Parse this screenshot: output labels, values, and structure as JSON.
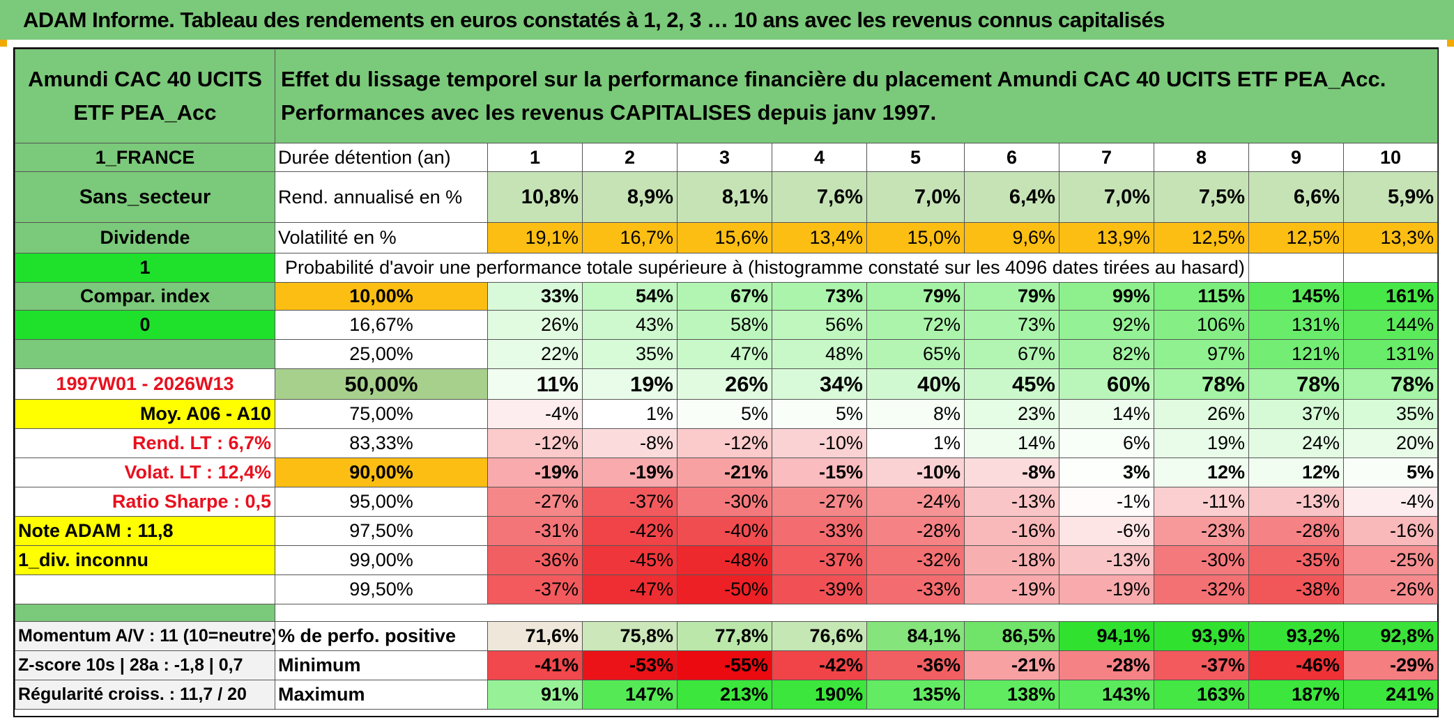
{
  "banner": {
    "title": "ADAM Informe. Tableau des rendements en euros constatés à 1, 2, 3 … 10 ans avec les revenus connus capitalisés"
  },
  "fund": {
    "name": "Amundi CAC 40 UCITS ETF PEA_Acc"
  },
  "header": {
    "description": "Effet du lissage temporel sur la performance financière du placement Amundi CAC 40 UCITS ETF PEA_Acc. Performances avec les revenus CAPITALISES depuis janv 1997."
  },
  "left": {
    "country": "1_FRANCE",
    "sector": "Sans_secteur",
    "dividend": "Dividende",
    "one": "1",
    "compar": "Compar. index",
    "zero": "0",
    "period": "1997W01 - 2026W13",
    "moy": "Moy. A06 - A10",
    "rend_lt": "Rend. LT :   6,7%",
    "volat_lt": "Volat. LT :   12,4%",
    "sharpe": "Ratio Sharpe :   0,5",
    "note": "Note ADAM : 11,8",
    "div": "1_div. inconnu",
    "momentum": "Momentum A/V : 11 (10=neutre)",
    "zscore": "Z-score 10s | 28a : -1,8 | 0,7",
    "regularite": "Régularité croiss. : 11,7 / 20"
  },
  "rows": {
    "duree_label": "Durée détention (an)",
    "years": [
      "1",
      "2",
      "3",
      "4",
      "5",
      "6",
      "7",
      "8",
      "9",
      "10"
    ],
    "rend_label": "Rend. annualisé en %",
    "rend": [
      "10,8%",
      "8,9%",
      "8,1%",
      "7,6%",
      "7,0%",
      "6,4%",
      "7,0%",
      "7,5%",
      "6,6%",
      "5,9%"
    ],
    "vol_label": "Volatilité en %",
    "vol": [
      "19,1%",
      "16,7%",
      "15,6%",
      "13,4%",
      "15,0%",
      "9,6%",
      "13,9%",
      "12,5%",
      "12,5%",
      "13,3%"
    ],
    "proba_label": "Probabilité d'avoir une performance totale supérieure à (histogramme constaté sur les 4096 dates tirées au hasard)",
    "pct": [
      {
        "p": "10,00%",
        "v": [
          "33%",
          "54%",
          "67%",
          "73%",
          "79%",
          "79%",
          "99%",
          "115%",
          "145%",
          "161%"
        ]
      },
      {
        "p": "16,67%",
        "v": [
          "26%",
          "43%",
          "58%",
          "56%",
          "72%",
          "73%",
          "92%",
          "106%",
          "131%",
          "144%"
        ]
      },
      {
        "p": "25,00%",
        "v": [
          "22%",
          "35%",
          "47%",
          "48%",
          "65%",
          "67%",
          "82%",
          "97%",
          "121%",
          "131%"
        ]
      },
      {
        "p": "50,00%",
        "v": [
          "11%",
          "19%",
          "26%",
          "34%",
          "40%",
          "45%",
          "60%",
          "78%",
          "78%",
          "78%"
        ]
      },
      {
        "p": "75,00%",
        "v": [
          "-4%",
          "1%",
          "5%",
          "5%",
          "8%",
          "23%",
          "14%",
          "26%",
          "37%",
          "35%"
        ]
      },
      {
        "p": "83,33%",
        "v": [
          "-12%",
          "-8%",
          "-12%",
          "-10%",
          "1%",
          "14%",
          "6%",
          "19%",
          "24%",
          "20%"
        ]
      },
      {
        "p": "90,00%",
        "v": [
          "-19%",
          "-19%",
          "-21%",
          "-15%",
          "-10%",
          "-8%",
          "3%",
          "12%",
          "12%",
          "5%"
        ]
      },
      {
        "p": "95,00%",
        "v": [
          "-27%",
          "-37%",
          "-30%",
          "-27%",
          "-24%",
          "-13%",
          "-1%",
          "-11%",
          "-13%",
          "-4%"
        ]
      },
      {
        "p": "97,50%",
        "v": [
          "-31%",
          "-42%",
          "-40%",
          "-33%",
          "-28%",
          "-16%",
          "-6%",
          "-23%",
          "-28%",
          "-16%"
        ]
      },
      {
        "p": "99,00%",
        "v": [
          "-36%",
          "-45%",
          "-48%",
          "-37%",
          "-32%",
          "-18%",
          "-13%",
          "-30%",
          "-35%",
          "-25%"
        ]
      },
      {
        "p": "99,50%",
        "v": [
          "-37%",
          "-47%",
          "-50%",
          "-39%",
          "-33%",
          "-19%",
          "-19%",
          "-32%",
          "-38%",
          "-26%"
        ]
      }
    ],
    "pos_label": "% de perfo. positive",
    "pos": [
      "71,6%",
      "75,8%",
      "77,8%",
      "76,6%",
      "84,1%",
      "86,5%",
      "94,1%",
      "93,9%",
      "93,2%",
      "92,8%"
    ],
    "min_label": "Minimum",
    "min": [
      "-41%",
      "-53%",
      "-55%",
      "-42%",
      "-36%",
      "-21%",
      "-28%",
      "-37%",
      "-46%",
      "-29%"
    ],
    "max_label": "Maximum",
    "max": [
      "91%",
      "147%",
      "213%",
      "190%",
      "135%",
      "138%",
      "143%",
      "163%",
      "187%",
      "241%"
    ]
  }
}
